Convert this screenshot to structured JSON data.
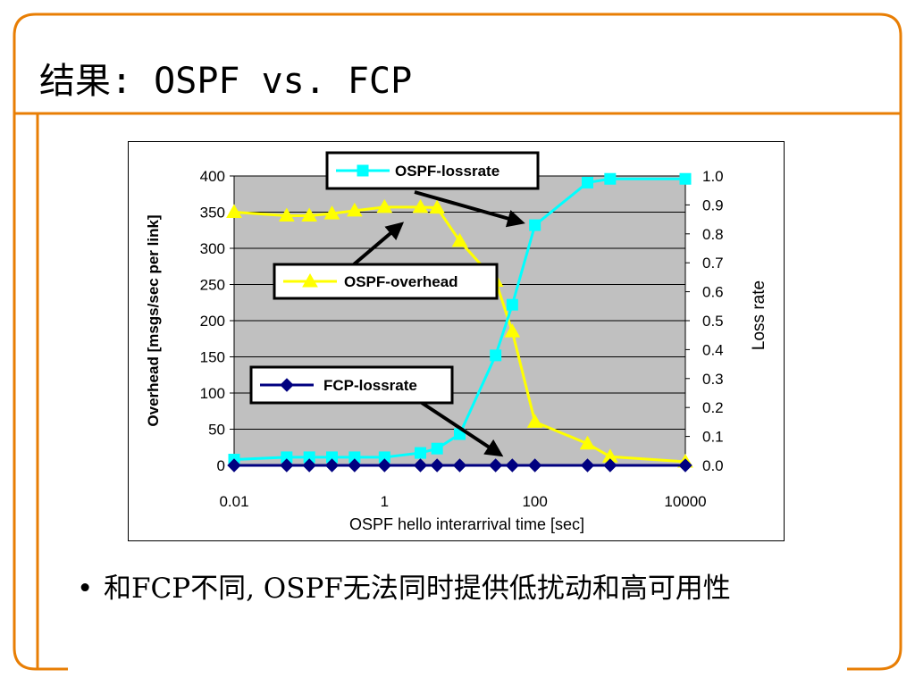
{
  "slide": {
    "title": "结果: OSPF vs. FCP",
    "bullet": "和FCP不同, OSPF无法同时提供低扰动和高可用性",
    "accent_color": "#e87e04"
  },
  "chart_data": {
    "type": "line",
    "xlabel": "OSPF hello interarrival time [sec]",
    "ylabel": "Overhead [msgs/sec per link]",
    "y2label": "Loss rate",
    "x_scale": "log",
    "xlim": [
      0.01,
      10000
    ],
    "x_ticks": [
      "0.01",
      "1",
      "100",
      "10000"
    ],
    "ylim": [
      0,
      400
    ],
    "y_ticks": [
      "0",
      "50",
      "100",
      "150",
      "200",
      "250",
      "300",
      "350",
      "400"
    ],
    "y2lim": [
      0,
      1.0
    ],
    "y2_ticks": [
      "0.0",
      "0.1",
      "0.2",
      "0.3",
      "0.4",
      "0.5",
      "0.6",
      "0.7",
      "0.8",
      "0.9",
      "1.0"
    ],
    "grid": true,
    "plot_background": "#c0c0c0",
    "series": [
      {
        "name": "OSPF-lossrate",
        "axis": "right",
        "color": "#00ffff",
        "marker": "square",
        "x": [
          0.01,
          0.05,
          0.1,
          0.2,
          0.4,
          1,
          3,
          5,
          10,
          30,
          50,
          100,
          500,
          1000,
          10000
        ],
        "y": [
          0.02,
          0.028,
          0.028,
          0.028,
          0.028,
          0.028,
          0.043,
          0.058,
          0.108,
          0.38,
          0.555,
          0.83,
          0.977,
          0.99,
          0.99
        ]
      },
      {
        "name": "OSPF-overhead",
        "axis": "left",
        "color": "#ffff00",
        "marker": "triangle",
        "x": [
          0.01,
          0.05,
          0.1,
          0.2,
          0.4,
          1,
          3,
          5,
          10,
          30,
          50,
          100,
          500,
          1000,
          10000
        ],
        "y": [
          350,
          345,
          345,
          348,
          352,
          357,
          357,
          356,
          310,
          255,
          185,
          60,
          30,
          12,
          5
        ]
      },
      {
        "name": "FCP-lossrate",
        "axis": "right",
        "color": "#000080",
        "marker": "diamond",
        "x": [
          0.01,
          0.05,
          0.1,
          0.2,
          0.4,
          1,
          3,
          5,
          10,
          30,
          50,
          100,
          500,
          1000,
          10000
        ],
        "y": [
          0,
          0,
          0,
          0,
          0,
          0,
          0,
          0,
          0,
          0,
          0,
          0,
          0,
          0,
          0
        ]
      }
    ],
    "callouts": [
      {
        "series": "OSPF-lossrate",
        "target_x": 70,
        "target_y": 0.85
      },
      {
        "series": "OSPF-overhead",
        "target_x": 2,
        "target_y": 0.34
      },
      {
        "series": "FCP-lossrate",
        "target_x": 50,
        "target_y": 0.02
      }
    ]
  }
}
